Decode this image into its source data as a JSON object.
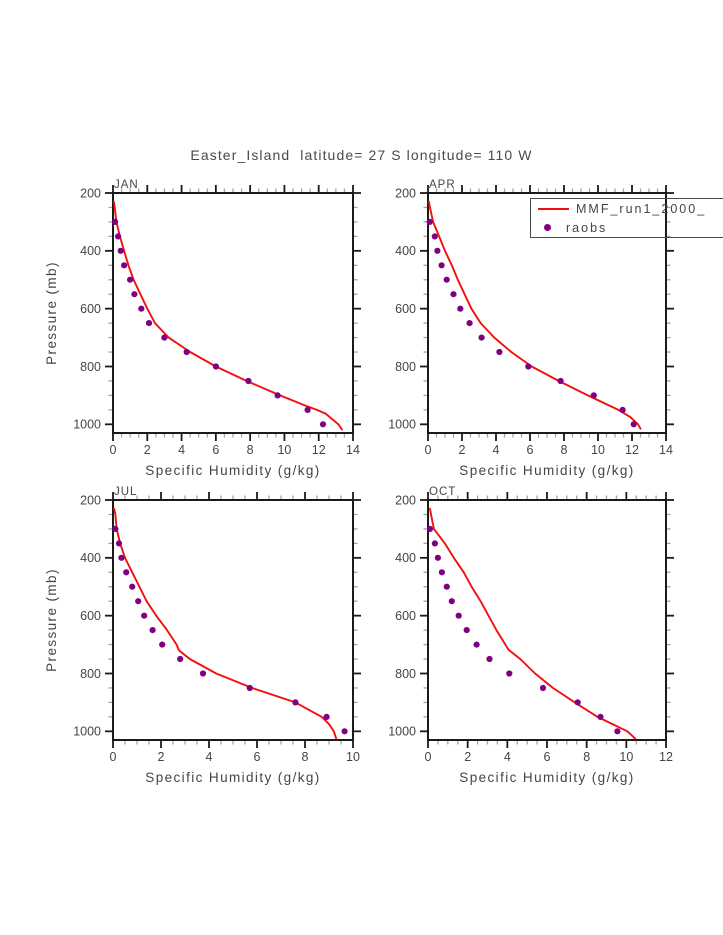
{
  "page": {
    "title": "Easter_Island  latitude= 27 S longitude= 110 W"
  },
  "chart_data": {
    "type": "line",
    "title": "Easter_Island  latitude= 27 S longitude= 110 W",
    "xlabel": "Specific Humidity (g/kg)",
    "ylabel": "Pressure (mb)",
    "ylim": [
      200,
      1030
    ],
    "yticks": [
      200,
      400,
      600,
      800,
      1000
    ],
    "y_minor_step": 50,
    "x_minor_step": 0.5,
    "y_inverted": true,
    "grid": false,
    "legend_position": "top-right-overflowing",
    "colors": {
      "mmf": "#f01010",
      "raobs": "#800080",
      "axis": "#1a1a1a",
      "minor_tick": "#a3a3a3",
      "text": "#454545"
    },
    "legend": {
      "entries": [
        {
          "label": "MMF_run1_2000_",
          "marker": "line",
          "color": "#f01010"
        },
        {
          "label": "raobs",
          "marker": "dot",
          "color": "#800080"
        }
      ]
    },
    "panels": [
      {
        "label": "JAN",
        "xlim": [
          0,
          14
        ],
        "xticks": [
          0,
          2,
          4,
          6,
          8,
          10,
          12,
          14
        ],
        "series": {
          "mmf": [
            [
              230,
              0.05
            ],
            [
              250,
              0.1
            ],
            [
              300,
              0.2
            ],
            [
              350,
              0.4
            ],
            [
              400,
              0.65
            ],
            [
              450,
              0.9
            ],
            [
              500,
              1.2
            ],
            [
              550,
              1.6
            ],
            [
              600,
              2.0
            ],
            [
              650,
              2.45
            ],
            [
              700,
              3.25
            ],
            [
              750,
              4.5
            ],
            [
              800,
              6.0
            ],
            [
              850,
              7.8
            ],
            [
              900,
              9.75
            ],
            [
              935,
              11.2
            ],
            [
              950,
              11.9
            ],
            [
              963,
              12.4
            ],
            [
              1000,
              13.15
            ],
            [
              1018,
              13.35
            ]
          ],
          "raobs": [
            [
              300,
              0.12
            ],
            [
              350,
              0.3
            ],
            [
              400,
              0.45
            ],
            [
              450,
              0.65
            ],
            [
              500,
              1.0
            ],
            [
              550,
              1.25
            ],
            [
              600,
              1.65
            ],
            [
              650,
              2.1
            ],
            [
              700,
              3.0
            ],
            [
              750,
              4.3
            ],
            [
              800,
              6.0
            ],
            [
              850,
              7.9
            ],
            [
              900,
              9.6
            ],
            [
              950,
              11.35
            ],
            [
              1000,
              12.25
            ]
          ]
        }
      },
      {
        "label": "APR",
        "xlim": [
          0,
          14
        ],
        "xticks": [
          0,
          2,
          4,
          6,
          8,
          10,
          12,
          14
        ],
        "series": {
          "mmf": [
            [
              230,
              0.05
            ],
            [
              250,
              0.12
            ],
            [
              300,
              0.3
            ],
            [
              350,
              0.65
            ],
            [
              400,
              1.0
            ],
            [
              450,
              1.4
            ],
            [
              500,
              1.75
            ],
            [
              550,
              2.15
            ],
            [
              600,
              2.55
            ],
            [
              650,
              3.1
            ],
            [
              700,
              3.9
            ],
            [
              720,
              4.3
            ],
            [
              750,
              4.9
            ],
            [
              800,
              6.1
            ],
            [
              850,
              7.7
            ],
            [
              900,
              9.4
            ],
            [
              950,
              11.2
            ],
            [
              975,
              11.9
            ],
            [
              1000,
              12.35
            ],
            [
              1015,
              12.5
            ]
          ],
          "raobs": [
            [
              300,
              0.1
            ],
            [
              350,
              0.4
            ],
            [
              400,
              0.55
            ],
            [
              450,
              0.8
            ],
            [
              500,
              1.1
            ],
            [
              550,
              1.5
            ],
            [
              600,
              1.9
            ],
            [
              650,
              2.45
            ],
            [
              700,
              3.15
            ],
            [
              750,
              4.2
            ],
            [
              800,
              5.9
            ],
            [
              850,
              7.8
            ],
            [
              900,
              9.75
            ],
            [
              950,
              11.45
            ],
            [
              1000,
              12.1
            ]
          ]
        }
      },
      {
        "label": "JUL",
        "xlim": [
          0,
          10
        ],
        "xticks": [
          0,
          2,
          4,
          6,
          8,
          10
        ],
        "series": {
          "mmf": [
            [
              230,
              0.05
            ],
            [
              250,
              0.1
            ],
            [
              300,
              0.15
            ],
            [
              350,
              0.3
            ],
            [
              400,
              0.5
            ],
            [
              450,
              0.8
            ],
            [
              500,
              1.1
            ],
            [
              550,
              1.4
            ],
            [
              600,
              1.8
            ],
            [
              650,
              2.25
            ],
            [
              700,
              2.65
            ],
            [
              720,
              2.75
            ],
            [
              750,
              3.2
            ],
            [
              800,
              4.3
            ],
            [
              850,
              5.8
            ],
            [
              900,
              7.6
            ],
            [
              950,
              8.7
            ],
            [
              975,
              9.0
            ],
            [
              1000,
              9.2
            ],
            [
              1025,
              9.3
            ]
          ],
          "raobs": [
            [
              300,
              0.1
            ],
            [
              350,
              0.25
            ],
            [
              400,
              0.35
            ],
            [
              450,
              0.55
            ],
            [
              500,
              0.8
            ],
            [
              550,
              1.05
            ],
            [
              600,
              1.3
            ],
            [
              650,
              1.65
            ],
            [
              700,
              2.05
            ],
            [
              750,
              2.8
            ],
            [
              800,
              3.75
            ],
            [
              850,
              5.7
            ],
            [
              900,
              7.6
            ],
            [
              950,
              8.9
            ],
            [
              1000,
              9.65
            ]
          ]
        }
      },
      {
        "label": "OCT",
        "xlim": [
          0,
          12
        ],
        "xticks": [
          0,
          2,
          4,
          6,
          8,
          10,
          12
        ],
        "series": {
          "mmf": [
            [
              230,
              0.1
            ],
            [
              250,
              0.15
            ],
            [
              300,
              0.3
            ],
            [
              350,
              0.85
            ],
            [
              400,
              1.3
            ],
            [
              450,
              1.8
            ],
            [
              500,
              2.2
            ],
            [
              550,
              2.65
            ],
            [
              600,
              3.05
            ],
            [
              650,
              3.45
            ],
            [
              700,
              3.9
            ],
            [
              717,
              4.05
            ],
            [
              750,
              4.65
            ],
            [
              800,
              5.4
            ],
            [
              850,
              6.3
            ],
            [
              900,
              7.4
            ],
            [
              950,
              8.55
            ],
            [
              975,
              9.3
            ],
            [
              1000,
              10.05
            ],
            [
              1025,
              10.45
            ]
          ],
          "raobs": [
            [
              300,
              0.1
            ],
            [
              350,
              0.35
            ],
            [
              400,
              0.5
            ],
            [
              450,
              0.7
            ],
            [
              500,
              0.95
            ],
            [
              550,
              1.2
            ],
            [
              600,
              1.55
            ],
            [
              650,
              1.95
            ],
            [
              700,
              2.45
            ],
            [
              750,
              3.1
            ],
            [
              800,
              4.1
            ],
            [
              850,
              5.8
            ],
            [
              900,
              7.55
            ],
            [
              950,
              8.7
            ],
            [
              1000,
              9.55
            ]
          ]
        }
      }
    ]
  }
}
